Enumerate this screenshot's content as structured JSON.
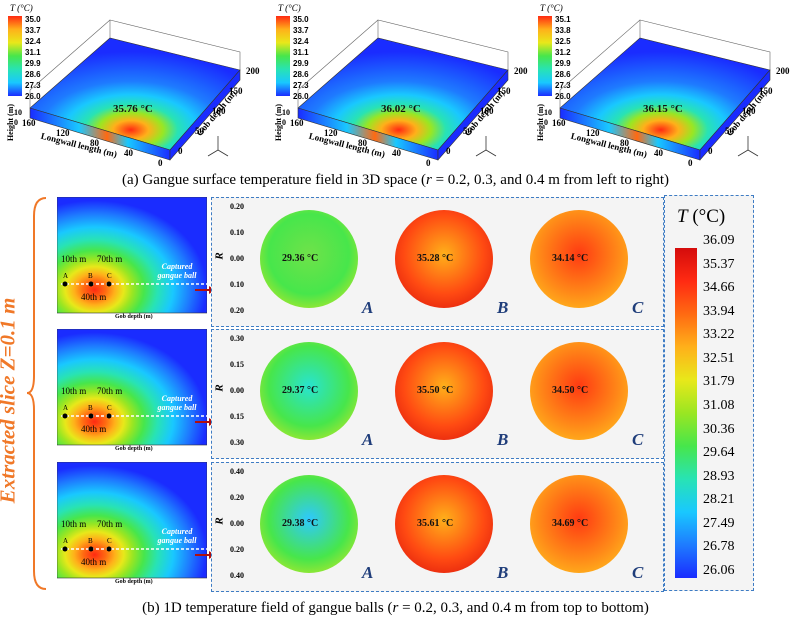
{
  "panel_a": {
    "caption_prefix": "(a) Gangue surface temperature field in 3D space (",
    "caption_r": "r",
    "caption_suffix": " = 0.2, 0.3, and 0.4 m from left to right)",
    "legend_title": "T (°C)",
    "plots": [
      {
        "legend": [
          "35.0",
          "33.7",
          "32.4",
          "31.1",
          "29.9",
          "28.6",
          "27.3",
          "26.0"
        ],
        "peak": "35.76 °C"
      },
      {
        "legend": [
          "35.0",
          "33.7",
          "32.4",
          "31.1",
          "29.9",
          "28.6",
          "27.3",
          "26.0"
        ],
        "peak": "36.02 °C"
      },
      {
        "legend": [
          "35.1",
          "33.8",
          "32.5",
          "31.2",
          "29.9",
          "28.6",
          "27.3",
          "26.0"
        ],
        "peak": "36.15 °C"
      }
    ],
    "axis_longwall": "Longwall length (m)",
    "axis_gob": "Gob depth (m)",
    "axis_height": "Height (m)",
    "ticks_longwall": [
      "160",
      "120",
      "80",
      "40",
      "0"
    ],
    "ticks_gob": [
      "0",
      "50",
      "100",
      "150",
      "200"
    ],
    "ticks_height": [
      "10",
      "0"
    ]
  },
  "panel_b": {
    "caption_prefix": "(b) 1D temperature field of gangue balls (",
    "caption_r": "r",
    "caption_suffix": " = 0.2, 0.3, and 0.4 m from top to bottom)",
    "side_label": "Extracted slice Z=0.1 m",
    "contour_xlabel": "Gob depth (m)",
    "contour_ylabel": "Longwall length (m)",
    "contour_xticks": [
      "0",
      "50",
      "100",
      "150",
      "200"
    ],
    "contour_yticks": [
      "160",
      "120",
      "80",
      "40",
      "0"
    ],
    "annot_10": "10th m",
    "annot_70": "70th m",
    "annot_40": "40th m",
    "captured": "Captured gangue ball",
    "point_labels": [
      "A",
      "B",
      "C"
    ],
    "r_label": "R",
    "rows": [
      {
        "r_ticks": [
          "0.20",
          "0.10",
          "0.00",
          "0.10",
          "0.20"
        ],
        "A": "29.36 °C",
        "B": "35.28 °C",
        "C": "34.14 °C"
      },
      {
        "r_ticks": [
          "0.30",
          "0.15",
          "0.00",
          "0.15",
          "0.30"
        ],
        "A": "29.37 °C",
        "B": "35.50 °C",
        "C": "34.50 °C"
      },
      {
        "r_ticks": [
          "0.40",
          "0.20",
          "0.00",
          "0.20",
          "0.40"
        ],
        "A": "29.38 °C",
        "B": "35.61 °C",
        "C": "34.69 °C"
      }
    ],
    "legend_title": "T (°C)",
    "legend_values": [
      "36.09",
      "35.37",
      "34.66",
      "33.94",
      "33.22",
      "32.51",
      "31.79",
      "31.08",
      "30.36",
      "29.64",
      "28.93",
      "28.21",
      "27.49",
      "26.78",
      "26.06"
    ]
  }
}
